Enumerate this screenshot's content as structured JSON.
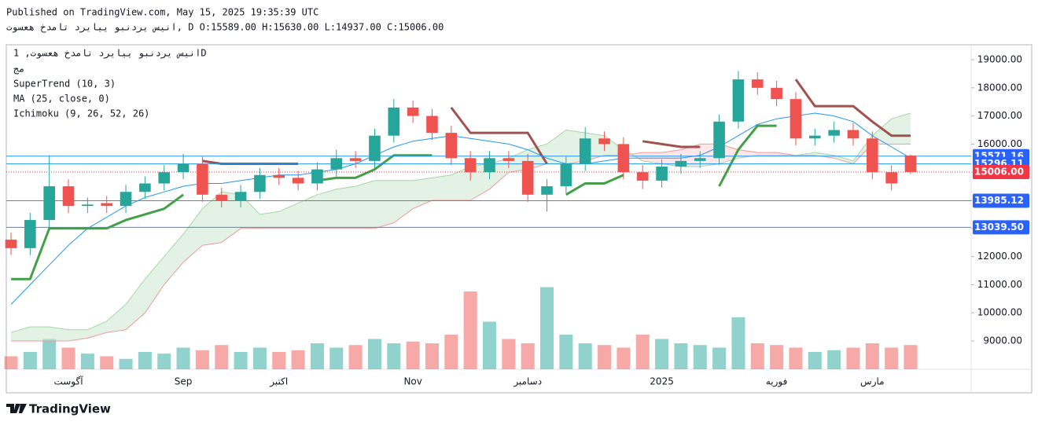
{
  "header": {
    "published": "Published on TradingView.com, May 15, 2025 19:35:39 UTC",
    "quote": "انیس یردنبو ییایرد تامدخ هعسوت, D O:15589.00 H:15630.00 L:14937.00 C:15006.00"
  },
  "legend": {
    "symbol": "انیس یردنبو ییایرد تامدخ هعسوت, 1D",
    "volume": "مج",
    "supertrend": "SuperTrend (10, 3)",
    "ma": "MA (25, close, 0)",
    "ichimoku": "Ichimoku (9, 26, 52, 26)"
  },
  "footer": {
    "brand": "TradingView"
  },
  "chart_data": {
    "type": "candlestick",
    "categories": [
      null,
      null,
      null,
      "آگوست",
      null,
      null,
      null,
      null,
      null,
      "Sep",
      null,
      null,
      null,
      null,
      "اکتبر",
      null,
      null,
      null,
      null,
      null,
      null,
      "Nov",
      null,
      null,
      null,
      null,
      null,
      "دسامبر",
      null,
      null,
      null,
      null,
      null,
      null,
      "2025",
      null,
      null,
      null,
      null,
      null,
      "فوریه",
      null,
      null,
      null,
      null,
      "مارس",
      null,
      null
    ],
    "open": [
      12600,
      12300,
      13300,
      14500,
      13800,
      13900,
      13800,
      14300,
      14600,
      15000,
      15300,
      14200,
      14000,
      14300,
      14900,
      14800,
      14600,
      15100,
      15500,
      15400,
      16300,
      17300,
      17000,
      16400,
      15500,
      15000,
      15500,
      15400,
      14200,
      14500,
      15300,
      16200,
      16000,
      15000,
      14700,
      15200,
      15400,
      15500,
      16800,
      18300,
      18000,
      17600,
      16200,
      16300,
      16500,
      16200,
      15000,
      15589
    ],
    "high": [
      12850,
      13550,
      15600,
      14750,
      14100,
      14150,
      14550,
      14850,
      15250,
      15650,
      15550,
      14450,
      14550,
      15150,
      15150,
      15050,
      15350,
      15800,
      15750,
      16550,
      17600,
      17550,
      17250,
      16650,
      15750,
      15750,
      15750,
      15650,
      14750,
      15550,
      16600,
      16450,
      16250,
      15250,
      15450,
      15650,
      15750,
      17050,
      18600,
      18550,
      18250,
      17850,
      16550,
      16800,
      16750,
      16450,
      15250,
      15630
    ],
    "low": [
      12050,
      12050,
      13050,
      13550,
      13550,
      13550,
      13550,
      14050,
      14350,
      14750,
      13950,
      13750,
      13750,
      14050,
      14550,
      14350,
      14350,
      14850,
      15150,
      15150,
      16050,
      16750,
      16150,
      15250,
      14700,
      14750,
      15150,
      13950,
      13600,
      14250,
      15050,
      15750,
      14750,
      14400,
      14450,
      14950,
      15150,
      15250,
      16550,
      17750,
      17350,
      15950,
      15950,
      16050,
      15950,
      14750,
      14350,
      14937
    ],
    "close": [
      12300,
      13300,
      14500,
      13800,
      13850,
      13800,
      14300,
      14600,
      15000,
      15300,
      14200,
      14000,
      14300,
      14900,
      14800,
      14600,
      15100,
      15500,
      15400,
      16300,
      17300,
      17000,
      16400,
      15500,
      15000,
      15500,
      15400,
      14200,
      14500,
      15300,
      16200,
      16000,
      15000,
      14700,
      15200,
      15400,
      15500,
      16800,
      18300,
      18000,
      17600,
      16200,
      16300,
      16500,
      16200,
      15000,
      14600,
      15006
    ],
    "volume": [
      15,
      20,
      35,
      25,
      18,
      15,
      12,
      20,
      18,
      25,
      22,
      28,
      20,
      25,
      20,
      22,
      30,
      25,
      28,
      35,
      30,
      32,
      30,
      40,
      90,
      55,
      35,
      30,
      95,
      40,
      30,
      28,
      25,
      40,
      35,
      30,
      28,
      25,
      60,
      30,
      28,
      25,
      20,
      22,
      25,
      30,
      25,
      28
    ],
    "vlim": [
      0,
      100
    ],
    "supertrend_up": [
      11200,
      11200,
      13000,
      13000,
      13000,
      13000,
      13300,
      13500,
      13700,
      14200,
      null,
      null,
      null,
      null,
      null,
      null,
      14700,
      14800,
      14800,
      15100,
      15600,
      15600,
      15600,
      null,
      null,
      null,
      null,
      null,
      null,
      14200,
      14600,
      14600,
      14900,
      null,
      null,
      null,
      null,
      14500,
      15800,
      16650,
      16650,
      null,
      null,
      null,
      null,
      null,
      null,
      null
    ],
    "supertrend_down": [
      null,
      null,
      null,
      null,
      null,
      null,
      null,
      null,
      null,
      null,
      15400,
      15300,
      15300,
      15300,
      15300,
      15300,
      null,
      null,
      null,
      null,
      null,
      null,
      null,
      17300,
      16400,
      16400,
      16400,
      16400,
      15300,
      null,
      null,
      null,
      null,
      16100,
      16000,
      15900,
      15900,
      null,
      null,
      null,
      null,
      18300,
      17350,
      17350,
      17350,
      16800,
      16300,
      16300
    ],
    "ma": [
      10300,
      11000,
      11700,
      12400,
      13000,
      13400,
      13800,
      14100,
      14300,
      14500,
      14600,
      14600,
      14700,
      14800,
      14900,
      14900,
      15000,
      15100,
      15300,
      15600,
      15900,
      16100,
      16200,
      16300,
      16200,
      16100,
      16000,
      15800,
      15500,
      15300,
      15300,
      15400,
      15500,
      15500,
      15500,
      15500,
      15600,
      15900,
      16300,
      16700,
      16900,
      17000,
      17100,
      17000,
      16800,
      16300,
      15900,
      15500
    ],
    "span_a": [
      9300,
      9500,
      9500,
      9400,
      9400,
      9700,
      10300,
      11200,
      12000,
      12800,
      13700,
      14300,
      14200,
      13500,
      13600,
      13900,
      14200,
      14400,
      14500,
      14700,
      14700,
      14700,
      14800,
      14900,
      15200,
      15300,
      15500,
      15800,
      16000,
      16500,
      16400,
      16300,
      15800,
      15400,
      15300,
      15200,
      15200,
      15300,
      15500,
      15600,
      15600,
      15600,
      15700,
      15600,
      15400,
      16300,
      16900,
      17100
    ],
    "span_b": [
      9000,
      9000,
      9000,
      9000,
      9100,
      9300,
      9400,
      10000,
      11000,
      11800,
      12400,
      12500,
      13000,
      13000,
      13000,
      13000,
      13000,
      13000,
      13000,
      13000,
      13200,
      13700,
      14000,
      14000,
      14000,
      14400,
      15000,
      15100,
      15300,
      15300,
      15400,
      15600,
      15600,
      15700,
      15700,
      15800,
      16000,
      16000,
      15800,
      15700,
      15700,
      15600,
      15600,
      15500,
      15300,
      16000,
      16000,
      16000
    ],
    "levels": [
      {
        "value": 15571.16,
        "color": "#2196f3"
      },
      {
        "value": 15296.11,
        "color": "#2196f3"
      },
      {
        "value": 15006,
        "label": "15006.00",
        "color": "#f23645"
      },
      {
        "value": 13985.12,
        "color": "#2196f3"
      },
      {
        "value": 13039.5,
        "label": "13039.50",
        "color": "#2196f3"
      }
    ],
    "ylim": [
      7994,
      19531
    ],
    "yticks": [
      {
        "value": 9000,
        "label": "9000.00"
      },
      {
        "value": 10000,
        "label": "10000.00"
      },
      {
        "value": 11000,
        "label": "11000.00"
      },
      {
        "value": 12000,
        "label": "12000.00"
      },
      {
        "value": 13000,
        "label": "13000.00"
      },
      {
        "value": 14000,
        "label": "14000.00"
      },
      {
        "value": 15000,
        "label": "15000.00"
      },
      {
        "value": 16000,
        "label": "16000.00"
      },
      {
        "value": 17000,
        "label": "17000.00"
      },
      {
        "value": 18000,
        "label": "18000.00"
      },
      {
        "value": 19000,
        "label": "19000.00"
      }
    ],
    "up_color": "#26a69a",
    "down_color": "#ef5350",
    "supertrend_up_color": "#43a047",
    "supertrend_down_color": "#a0524f",
    "ma_color": "#2196f3",
    "span_a_color": "#a5d6a7",
    "span_b_color": "#ef9a9a",
    "cloud_up_color": "#c8e6c9",
    "cloud_down_color": "#ffcdd2"
  }
}
